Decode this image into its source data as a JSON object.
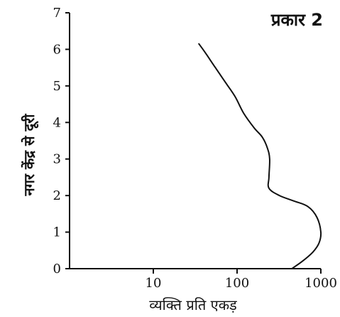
{
  "chart_data": {
    "type": "line",
    "title": "प्रकार 2",
    "xlabel": "व्यक्ति प्रति एकड़",
    "ylabel": "नगर केंद्र से दूरी",
    "x_scale": "log",
    "xlim": [
      1,
      1000
    ],
    "ylim": [
      0,
      7
    ],
    "x_ticks": [
      10,
      100,
      1000
    ],
    "x_tick_labels": [
      "10",
      "100",
      "1000"
    ],
    "y_ticks": [
      0,
      1,
      2,
      3,
      4,
      5,
      6,
      7
    ],
    "y_tick_labels": [
      "0",
      "1",
      "2",
      "3",
      "4",
      "5",
      "6",
      "7"
    ],
    "grid": false,
    "series": [
      {
        "x": [
          450,
          600,
          800,
          950,
          1000,
          900,
          700,
          480,
          320,
          240,
          240,
          245,
          230,
          200,
          160,
          120,
          95,
          75,
          55,
          42,
          35
        ],
        "y": [
          0,
          0.2,
          0.45,
          0.7,
          1.0,
          1.4,
          1.7,
          1.85,
          2.0,
          2.2,
          2.5,
          3.0,
          3.3,
          3.6,
          3.85,
          4.25,
          4.7,
          5.05,
          5.5,
          5.9,
          6.15
        ]
      }
    ]
  }
}
